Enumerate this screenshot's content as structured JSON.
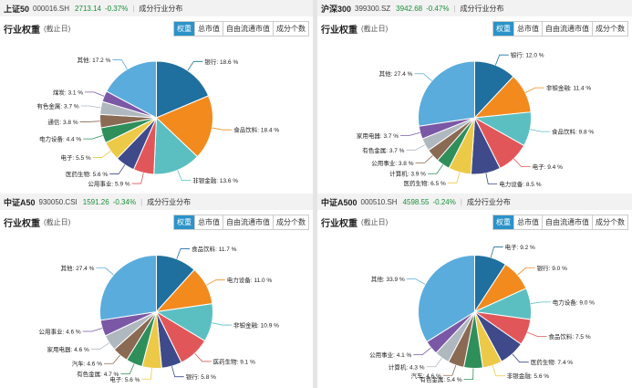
{
  "colors": [
    "#1f6f9f",
    "#f28a1e",
    "#5bbfc2",
    "#e15759",
    "#3f4a8a",
    "#edc948",
    "#2f8f5b",
    "#8a6a53",
    "#b0b8bf",
    "#7a58a6",
    "#5aacdc"
  ],
  "tabs": [
    "权重",
    "总市值",
    "自由流通市值",
    "成分个数"
  ],
  "panels": [
    {
      "header": {
        "name": "上证50",
        "code": "000016.SH",
        "price": "2713.14",
        "change": "-0.37%",
        "sep": "|",
        "dist": "成分行业分布"
      },
      "title": "行业权重",
      "date": "(截止日)",
      "chart_data": {
        "type": "pie",
        "slices": [
          {
            "label": "银行: 18.6 %",
            "value": 18.6
          },
          {
            "label": "食品饮料: 18.4 %",
            "value": 18.4
          },
          {
            "label": "非银金融: 13.6 %",
            "value": 13.6
          },
          {
            "label": "公用事业: 5.9 %",
            "value": 5.9
          },
          {
            "label": "医药生物: 5.6 %",
            "value": 5.6
          },
          {
            "label": "电子: 5.5 %",
            "value": 5.5
          },
          {
            "label": "电力设备: 4.4 %",
            "value": 4.4
          },
          {
            "label": "通信: 3.8 %",
            "value": 3.8
          },
          {
            "label": "有色金属: 3.7 %",
            "value": 3.7
          },
          {
            "label": "煤炭: 3.1 %",
            "value": 3.1
          },
          {
            "label": "其他: 17.2 %",
            "value": 17.2
          }
        ]
      }
    },
    {
      "header": {
        "name": "沪深300",
        "code": "399300.SZ",
        "price": "3942.68",
        "change": "-0.47%",
        "sep": "|",
        "dist": "成分行业分布"
      },
      "title": "行业权重",
      "date": "(截止日)",
      "chart_data": {
        "type": "pie",
        "slices": [
          {
            "label": "银行: 12.0 %",
            "value": 12.0
          },
          {
            "label": "非银金融: 11.4 %",
            "value": 11.4
          },
          {
            "label": "食品饮料: 9.8 %",
            "value": 9.8
          },
          {
            "label": "电子: 9.4 %",
            "value": 9.4
          },
          {
            "label": "电力设备: 8.5 %",
            "value": 8.5
          },
          {
            "label": "医药生物: 6.5 %",
            "value": 6.5
          },
          {
            "label": "计算机: 3.9 %",
            "value": 3.9
          },
          {
            "label": "公用事业: 3.8 %",
            "value": 3.8
          },
          {
            "label": "有色金属: 3.7 %",
            "value": 3.7
          },
          {
            "label": "家用电器: 3.7 %",
            "value": 3.7
          },
          {
            "label": "其他: 27.4 %",
            "value": 27.4
          }
        ]
      }
    },
    {
      "header": {
        "name": "中证A50",
        "code": "930050.CSI",
        "price": "1591.26",
        "change": "-0.34%",
        "sep": "|",
        "dist": "成分行业分布"
      },
      "title": "行业权重",
      "date": "(截止日)",
      "chart_data": {
        "type": "pie",
        "slices": [
          {
            "label": "食品饮料: 11.7 %",
            "value": 11.7
          },
          {
            "label": "电力设备: 11.0 %",
            "value": 11.0
          },
          {
            "label": "非银金融: 10.9 %",
            "value": 10.9
          },
          {
            "label": "医药生物: 9.1 %",
            "value": 9.1
          },
          {
            "label": "银行: 5.8 %",
            "value": 5.8
          },
          {
            "label": "电子: 5.6 %",
            "value": 5.6
          },
          {
            "label": "有色金属: 4.7 %",
            "value": 4.7
          },
          {
            "label": "汽车: 4.6 %",
            "value": 4.6
          },
          {
            "label": "家用电器: 4.6 %",
            "value": 4.6
          },
          {
            "label": "公用事业: 4.6 %",
            "value": 4.6
          },
          {
            "label": "其他: 27.4 %",
            "value": 27.4
          }
        ]
      }
    },
    {
      "header": {
        "name": "中证A500",
        "code": "000510.SH",
        "price": "4598.55",
        "change": "-0.24%",
        "sep": "|",
        "dist": "成分行业分布"
      },
      "title": "行业权重",
      "date": "(截止日)",
      "chart_data": {
        "type": "pie",
        "slices": [
          {
            "label": "电子: 9.2 %",
            "value": 9.2
          },
          {
            "label": "银行: 9.0 %",
            "value": 9.0
          },
          {
            "label": "电力设备: 9.0 %",
            "value": 9.0
          },
          {
            "label": "食品饮料: 7.5 %",
            "value": 7.5
          },
          {
            "label": "医药生物: 7.4 %",
            "value": 7.4
          },
          {
            "label": "非银金融: 5.6 %",
            "value": 5.6
          },
          {
            "label": "有色金属: 5.4 %",
            "value": 5.4
          },
          {
            "label": "汽车: 4.6 %",
            "value": 4.6
          },
          {
            "label": "计算机: 4.3 %",
            "value": 4.3
          },
          {
            "label": "公用事业: 4.1 %",
            "value": 4.1
          },
          {
            "label": "其他: 33.9 %",
            "value": 33.9
          }
        ]
      }
    }
  ]
}
